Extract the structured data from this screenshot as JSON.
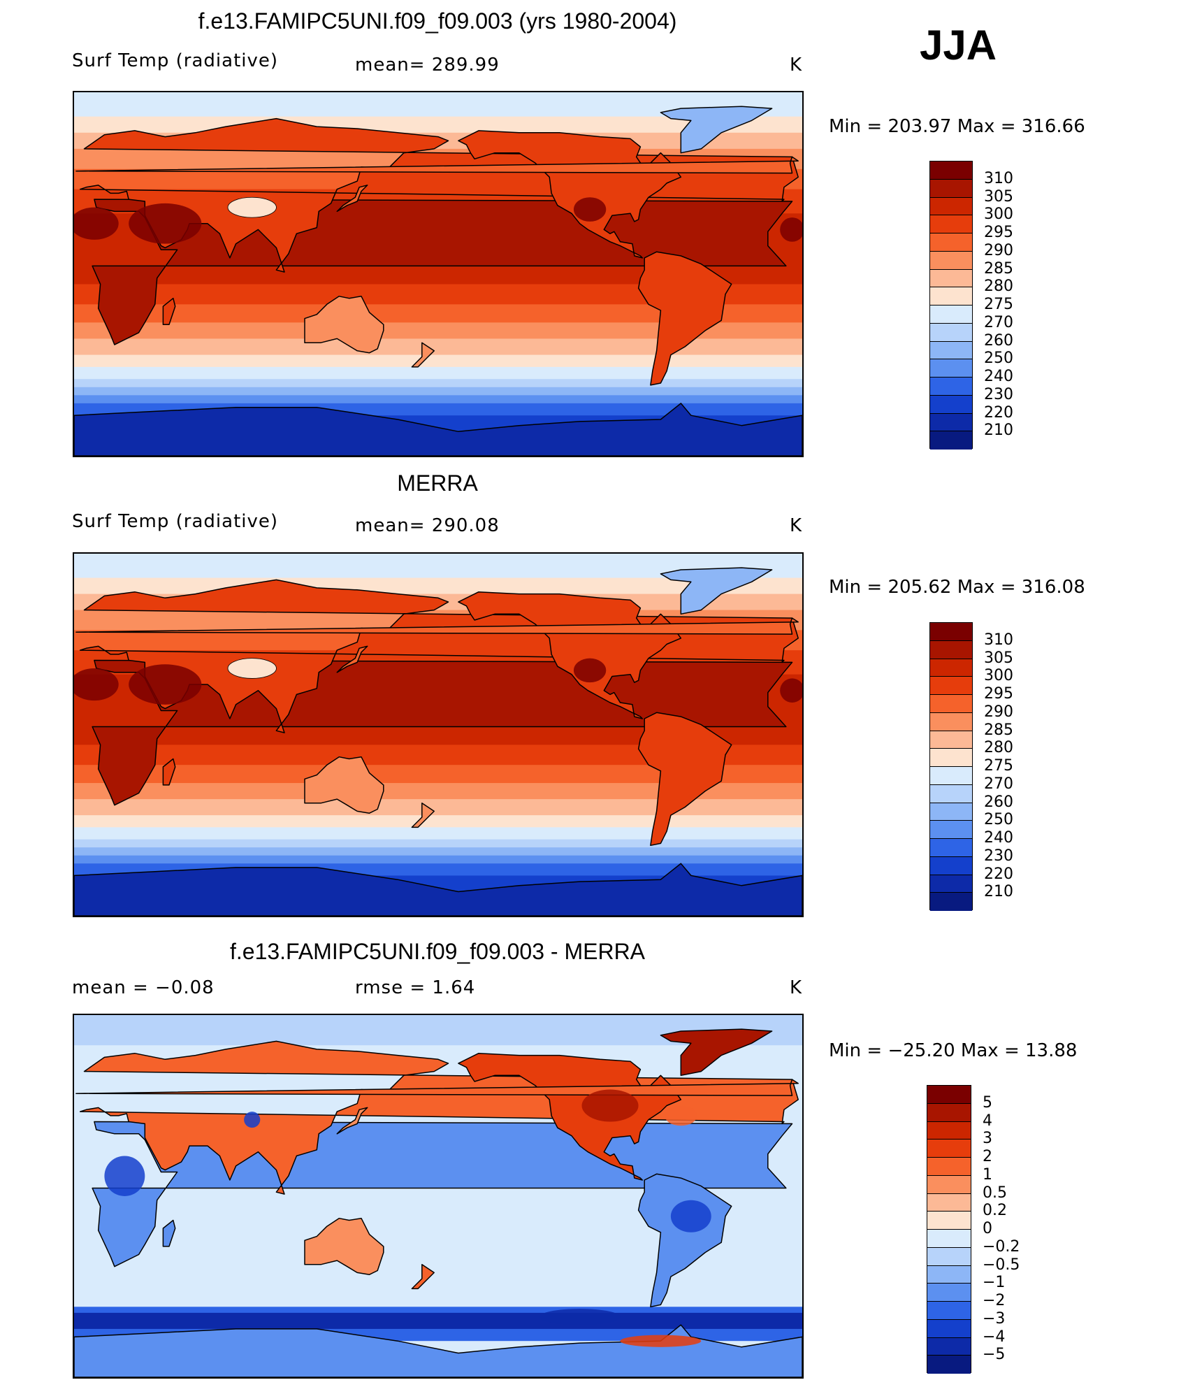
{
  "season": "JJA",
  "unit": "K",
  "panels": [
    {
      "title": "f.e13.FAMIPC5UNI.f09_f09.003 (yrs 1980-2004)",
      "left_label": "Surf Temp (radiative)",
      "center_label": "mean= 289.99",
      "unit": "K",
      "minmax": "Min = 203.97 Max = 316.66",
      "field": "absolute",
      "colorbar_ticks": [
        "310",
        "305",
        "300",
        "295",
        "290",
        "285",
        "280",
        "275",
        "270",
        "260",
        "250",
        "240",
        "230",
        "220",
        "210"
      ]
    },
    {
      "title": "MERRA",
      "left_label": "Surf Temp (radiative)",
      "center_label": "mean= 290.08",
      "unit": "K",
      "minmax": "Min = 205.62 Max = 316.08",
      "field": "absolute",
      "colorbar_ticks": [
        "310",
        "305",
        "300",
        "295",
        "290",
        "285",
        "280",
        "275",
        "270",
        "260",
        "250",
        "240",
        "230",
        "220",
        "210"
      ]
    },
    {
      "title": "f.e13.FAMIPC5UNI.f09_f09.003 - MERRA",
      "left_label": "mean =   −0.08",
      "center_label": "rmse =    1.64",
      "unit": "K",
      "minmax": "Min = −25.20 Max =  13.88",
      "field": "difference",
      "colorbar_ticks": [
        "5",
        "4",
        "3",
        "2",
        "1",
        "0.5",
        "0.2",
        "0",
        "−0.2",
        "−0.5",
        "−1",
        "−2",
        "−3",
        "−4",
        "−5"
      ]
    }
  ],
  "colors": {
    "abs_scale": [
      "#7a0000",
      "#a81500",
      "#cc2600",
      "#e63d0c",
      "#f5622b",
      "#fa8f5e",
      "#fcb996",
      "#fde3cf",
      "#d9ebfc",
      "#b7d3fa",
      "#8db6f6",
      "#5c90f0",
      "#2e64e6",
      "#1440cc",
      "#0d2aa8",
      "#081a80"
    ],
    "diff_scale": [
      "#7a0000",
      "#a81500",
      "#cc2600",
      "#e63d0c",
      "#f5622b",
      "#fa8f5e",
      "#fcb996",
      "#fde3cf",
      "#d9ebfc",
      "#b7d3fa",
      "#8db6f6",
      "#5c90f0",
      "#2e64e6",
      "#1440cc",
      "#0d2aa8",
      "#081a80"
    ],
    "coastline": "#000000"
  }
}
